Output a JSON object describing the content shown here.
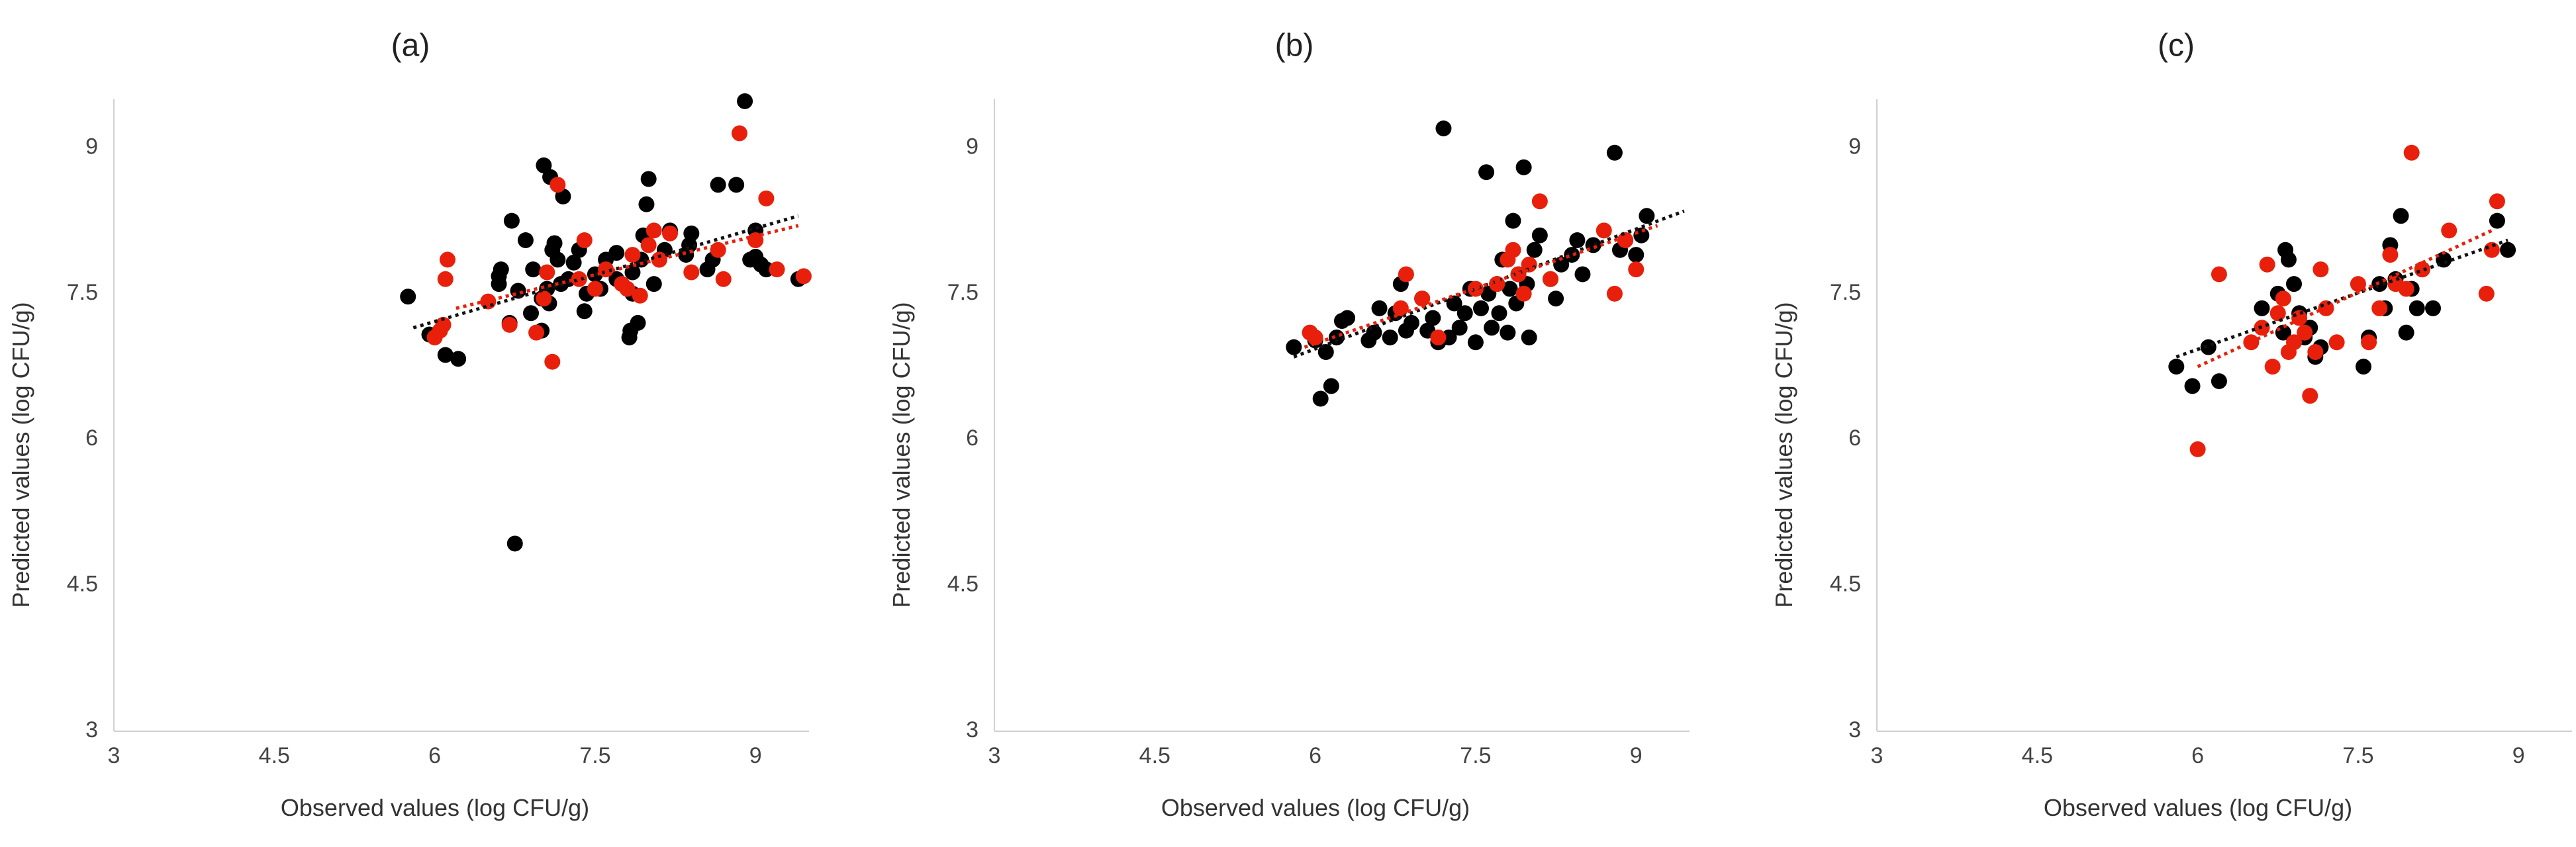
{
  "chart_data": [
    {
      "type": "scatter",
      "title": "(a)",
      "xlabel": "Observed values (log CFU/g)",
      "ylabel": "Predicted values (log CFU/g)",
      "xlim": [
        3,
        9.5
      ],
      "ylim": [
        3,
        9.5
      ],
      "xticks": [
        "3",
        "4.5",
        "6",
        "7.5",
        "9"
      ],
      "yticks": [
        "3",
        "4.5",
        "6",
        "7.5",
        "9"
      ],
      "series": [
        {
          "name": "black",
          "color": "#000000",
          "points": [
            [
              5.75,
              7.47
            ],
            [
              5.95,
              7.08
            ],
            [
              6.1,
              6.87
            ],
            [
              6.22,
              6.83
            ],
            [
              6.6,
              7.6
            ],
            [
              6.6,
              7.68
            ],
            [
              6.62,
              7.75
            ],
            [
              6.7,
              7.2
            ],
            [
              6.72,
              8.25
            ],
            [
              6.75,
              4.93
            ],
            [
              6.78,
              7.53
            ],
            [
              6.85,
              8.05
            ],
            [
              6.9,
              7.3
            ],
            [
              6.92,
              7.75
            ],
            [
              7.0,
              7.12
            ],
            [
              7.0,
              7.45
            ],
            [
              7.02,
              8.82
            ],
            [
              7.05,
              7.55
            ],
            [
              7.07,
              7.4
            ],
            [
              7.08,
              8.7
            ],
            [
              7.1,
              7.95
            ],
            [
              7.12,
              8.02
            ],
            [
              7.15,
              7.85
            ],
            [
              7.18,
              7.6
            ],
            [
              7.2,
              8.5
            ],
            [
              7.25,
              7.65
            ],
            [
              7.3,
              7.82
            ],
            [
              7.35,
              7.95
            ],
            [
              7.4,
              7.32
            ],
            [
              7.42,
              7.5
            ],
            [
              7.5,
              7.7
            ],
            [
              7.55,
              7.55
            ],
            [
              7.6,
              7.85
            ],
            [
              7.7,
              7.65
            ],
            [
              7.7,
              7.92
            ],
            [
              7.82,
              7.05
            ],
            [
              7.83,
              7.12
            ],
            [
              7.85,
              7.5
            ],
            [
              7.85,
              7.72
            ],
            [
              7.9,
              7.2
            ],
            [
              7.93,
              7.85
            ],
            [
              7.95,
              8.1
            ],
            [
              7.98,
              8.42
            ],
            [
              8.0,
              8.68
            ],
            [
              8.05,
              7.6
            ],
            [
              8.1,
              7.85
            ],
            [
              8.15,
              7.95
            ],
            [
              8.2,
              8.15
            ],
            [
              8.35,
              7.9
            ],
            [
              8.38,
              8.0
            ],
            [
              8.4,
              8.12
            ],
            [
              8.55,
              7.75
            ],
            [
              8.6,
              7.85
            ],
            [
              8.65,
              8.62
            ],
            [
              8.82,
              8.62
            ],
            [
              8.9,
              9.48
            ],
            [
              8.95,
              7.85
            ],
            [
              9.0,
              7.88
            ],
            [
              9.0,
              8.15
            ],
            [
              9.05,
              7.8
            ],
            [
              9.1,
              7.75
            ],
            [
              9.4,
              7.65
            ]
          ]
        },
        {
          "name": "red",
          "color": "#e8200b",
          "points": [
            [
              6.0,
              7.05
            ],
            [
              6.05,
              7.12
            ],
            [
              6.08,
              7.18
            ],
            [
              6.1,
              7.65
            ],
            [
              6.12,
              7.85
            ],
            [
              6.5,
              7.42
            ],
            [
              6.7,
              7.18
            ],
            [
              6.95,
              7.1
            ],
            [
              7.02,
              7.45
            ],
            [
              7.05,
              7.72
            ],
            [
              7.1,
              6.8
            ],
            [
              7.15,
              8.62
            ],
            [
              7.35,
              7.65
            ],
            [
              7.4,
              8.05
            ],
            [
              7.5,
              7.55
            ],
            [
              7.6,
              7.75
            ],
            [
              7.75,
              7.6
            ],
            [
              7.8,
              7.55
            ],
            [
              7.85,
              7.9
            ],
            [
              7.92,
              7.48
            ],
            [
              8.0,
              8.0
            ],
            [
              8.05,
              8.15
            ],
            [
              8.1,
              7.85
            ],
            [
              8.2,
              8.12
            ],
            [
              8.4,
              7.72
            ],
            [
              8.65,
              7.95
            ],
            [
              8.7,
              7.65
            ],
            [
              8.85,
              9.15
            ],
            [
              9.0,
              8.05
            ],
            [
              9.1,
              8.48
            ],
            [
              9.2,
              7.75
            ],
            [
              9.45,
              7.68
            ]
          ]
        }
      ],
      "trendlines": [
        {
          "color": "#111111",
          "x": [
            5.8,
            9.4
          ],
          "y": [
            7.15,
            8.3
          ]
        },
        {
          "color": "#e8200b",
          "x": [
            6.2,
            9.4
          ],
          "y": [
            7.35,
            8.2
          ]
        }
      ]
    },
    {
      "type": "scatter",
      "title": "(b)",
      "xlabel": "Observed values (log CFU/g)",
      "ylabel": "Predicted values (log CFU/g)",
      "xlim": [
        3,
        9.5
      ],
      "ylim": [
        3,
        9.5
      ],
      "xticks": [
        "3",
        "4.5",
        "6",
        "7.5",
        "9"
      ],
      "yticks": [
        "3",
        "4.5",
        "6",
        "7.5",
        "9"
      ],
      "series": [
        {
          "name": "black",
          "color": "#000000",
          "points": [
            [
              5.8,
              6.95
            ],
            [
              6.0,
              7.02
            ],
            [
              6.05,
              6.42
            ],
            [
              6.1,
              6.9
            ],
            [
              6.15,
              6.55
            ],
            [
              6.2,
              7.05
            ],
            [
              6.25,
              7.22
            ],
            [
              6.3,
              7.25
            ],
            [
              6.5,
              7.02
            ],
            [
              6.55,
              7.1
            ],
            [
              6.6,
              7.35
            ],
            [
              6.7,
              7.05
            ],
            [
              6.75,
              7.3
            ],
            [
              6.8,
              7.6
            ],
            [
              6.85,
              7.12
            ],
            [
              6.9,
              7.2
            ],
            [
              7.0,
              7.45
            ],
            [
              7.05,
              7.12
            ],
            [
              7.1,
              7.25
            ],
            [
              7.15,
              7.0
            ],
            [
              7.2,
              9.2
            ],
            [
              7.25,
              7.05
            ],
            [
              7.3,
              7.4
            ],
            [
              7.35,
              7.15
            ],
            [
              7.4,
              7.3
            ],
            [
              7.45,
              7.55
            ],
            [
              7.5,
              7.0
            ],
            [
              7.55,
              7.35
            ],
            [
              7.6,
              8.75
            ],
            [
              7.62,
              7.5
            ],
            [
              7.65,
              7.15
            ],
            [
              7.7,
              7.6
            ],
            [
              7.72,
              7.3
            ],
            [
              7.75,
              7.85
            ],
            [
              7.8,
              7.1
            ],
            [
              7.82,
              7.55
            ],
            [
              7.85,
              8.25
            ],
            [
              7.88,
              7.4
            ],
            [
              7.9,
              7.7
            ],
            [
              7.95,
              8.8
            ],
            [
              7.98,
              7.6
            ],
            [
              8.0,
              7.05
            ],
            [
              8.05,
              7.95
            ],
            [
              8.1,
              8.1
            ],
            [
              8.2,
              7.65
            ],
            [
              8.25,
              7.45
            ],
            [
              8.3,
              7.8
            ],
            [
              8.4,
              7.9
            ],
            [
              8.45,
              8.05
            ],
            [
              8.5,
              7.7
            ],
            [
              8.6,
              8.0
            ],
            [
              8.8,
              8.95
            ],
            [
              8.85,
              7.95
            ],
            [
              8.9,
              8.05
            ],
            [
              9.0,
              7.9
            ],
            [
              9.05,
              8.1
            ],
            [
              9.1,
              8.3
            ]
          ]
        },
        {
          "name": "red",
          "color": "#e8200b",
          "points": [
            [
              5.95,
              7.1
            ],
            [
              6.0,
              7.05
            ],
            [
              6.8,
              7.35
            ],
            [
              6.85,
              7.7
            ],
            [
              7.0,
              7.45
            ],
            [
              7.15,
              7.05
            ],
            [
              7.5,
              7.55
            ],
            [
              7.7,
              7.6
            ],
            [
              7.8,
              7.85
            ],
            [
              7.85,
              7.95
            ],
            [
              7.9,
              7.7
            ],
            [
              7.95,
              7.5
            ],
            [
              8.0,
              7.8
            ],
            [
              8.1,
              8.45
            ],
            [
              8.2,
              7.65
            ],
            [
              8.7,
              8.15
            ],
            [
              8.8,
              7.5
            ],
            [
              8.9,
              8.05
            ],
            [
              9.0,
              7.75
            ]
          ]
        }
      ],
      "trendlines": [
        {
          "color": "#111111",
          "x": [
            5.8,
            9.45
          ],
          "y": [
            6.85,
            8.35
          ]
        },
        {
          "color": "#e8200b",
          "x": [
            5.9,
            9.2
          ],
          "y": [
            6.95,
            8.2
          ]
        }
      ]
    },
    {
      "type": "scatter",
      "title": "(c)",
      "xlabel": "Observed values (log CFU/g)",
      "ylabel": "Predicted values (log CFU/g)",
      "xlim": [
        3,
        9.5
      ],
      "ylim": [
        3,
        9.5
      ],
      "xticks": [
        "3",
        "4.5",
        "6",
        "7.5",
        "9"
      ],
      "yticks": [
        "3",
        "4.5",
        "6",
        "7.5",
        "9"
      ],
      "series": [
        {
          "name": "black",
          "color": "#000000",
          "points": [
            [
              5.8,
              6.75
            ],
            [
              5.95,
              6.55
            ],
            [
              6.1,
              6.95
            ],
            [
              6.2,
              6.6
            ],
            [
              6.6,
              7.35
            ],
            [
              6.75,
              7.5
            ],
            [
              6.8,
              7.1
            ],
            [
              6.82,
              7.95
            ],
            [
              6.85,
              7.85
            ],
            [
              6.9,
              7.6
            ],
            [
              6.95,
              7.3
            ],
            [
              7.0,
              7.05
            ],
            [
              7.05,
              7.15
            ],
            [
              7.1,
              6.85
            ],
            [
              7.15,
              6.95
            ],
            [
              7.55,
              6.75
            ],
            [
              7.6,
              7.05
            ],
            [
              7.7,
              7.6
            ],
            [
              7.75,
              7.35
            ],
            [
              7.8,
              8.0
            ],
            [
              7.85,
              7.65
            ],
            [
              7.9,
              8.3
            ],
            [
              7.95,
              7.1
            ],
            [
              8.0,
              7.55
            ],
            [
              8.05,
              7.35
            ],
            [
              8.1,
              7.75
            ],
            [
              8.2,
              7.35
            ],
            [
              8.3,
              7.85
            ],
            [
              8.8,
              8.25
            ],
            [
              8.9,
              7.95
            ]
          ]
        },
        {
          "name": "red",
          "color": "#e8200b",
          "points": [
            [
              6.0,
              5.9
            ],
            [
              6.2,
              7.7
            ],
            [
              6.5,
              7.0
            ],
            [
              6.6,
              7.15
            ],
            [
              6.65,
              7.8
            ],
            [
              6.7,
              6.75
            ],
            [
              6.75,
              7.3
            ],
            [
              6.8,
              7.45
            ],
            [
              6.85,
              6.9
            ],
            [
              6.9,
              7.0
            ],
            [
              6.95,
              7.25
            ],
            [
              7.0,
              7.1
            ],
            [
              7.05,
              6.45
            ],
            [
              7.1,
              6.9
            ],
            [
              7.15,
              7.75
            ],
            [
              7.2,
              7.35
            ],
            [
              7.3,
              7.0
            ],
            [
              7.5,
              7.6
            ],
            [
              7.6,
              7.0
            ],
            [
              7.7,
              7.35
            ],
            [
              7.8,
              7.9
            ],
            [
              7.85,
              7.6
            ],
            [
              7.95,
              7.55
            ],
            [
              8.0,
              8.95
            ],
            [
              8.1,
              7.75
            ],
            [
              8.35,
              8.15
            ],
            [
              8.7,
              7.5
            ],
            [
              8.75,
              7.95
            ],
            [
              8.8,
              8.45
            ]
          ]
        }
      ],
      "trendlines": [
        {
          "color": "#111111",
          "x": [
            5.8,
            8.9
          ],
          "y": [
            6.85,
            8.05
          ]
        },
        {
          "color": "#e8200b",
          "x": [
            6.0,
            8.75
          ],
          "y": [
            6.75,
            8.15
          ]
        }
      ]
    }
  ]
}
